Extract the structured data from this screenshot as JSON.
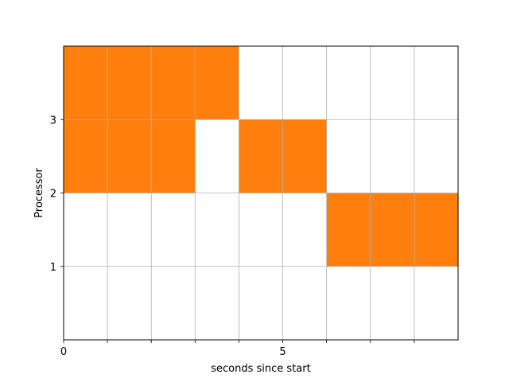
{
  "chart_data": {
    "type": "bar",
    "orientation": "horizontal-broken",
    "xlabel": "seconds since start",
    "ylabel": "Processor",
    "xlim": [
      0,
      9
    ],
    "ylim": [
      0,
      4
    ],
    "x_ticks": [
      {
        "value": 0,
        "label": "0"
      },
      {
        "value": 1,
        "label": ""
      },
      {
        "value": 2,
        "label": ""
      },
      {
        "value": 3,
        "label": ""
      },
      {
        "value": 4,
        "label": ""
      },
      {
        "value": 5,
        "label": "5"
      },
      {
        "value": 6,
        "label": ""
      },
      {
        "value": 7,
        "label": ""
      },
      {
        "value": 8,
        "label": ""
      }
    ],
    "y_ticks": [
      {
        "value": 1,
        "label": "1"
      },
      {
        "value": 2,
        "label": "2"
      },
      {
        "value": 3,
        "label": "3"
      }
    ],
    "grid": true,
    "bar_color": "#ff7f0e",
    "grid_color": "#b0b0b0",
    "series": [
      {
        "y_start": 3,
        "y_end": 4,
        "x_start": 0,
        "x_end": 4
      },
      {
        "y_start": 2,
        "y_end": 3,
        "x_start": 0,
        "x_end": 3
      },
      {
        "y_start": 2,
        "y_end": 3,
        "x_start": 4,
        "x_end": 6
      },
      {
        "y_start": 1,
        "y_end": 2,
        "x_start": 6,
        "x_end": 9
      }
    ]
  }
}
